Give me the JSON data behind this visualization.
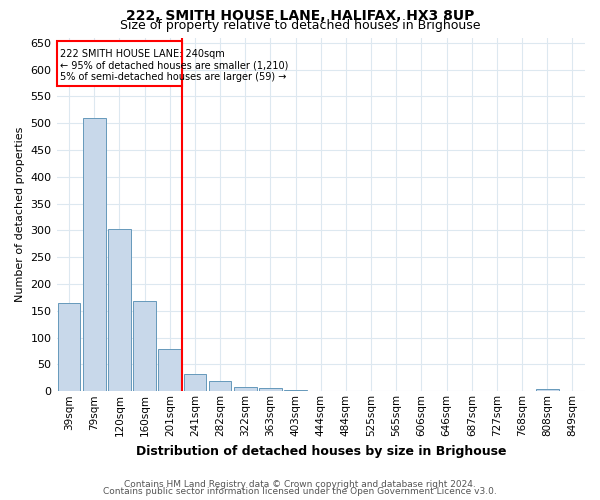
{
  "title1": "222, SMITH HOUSE LANE, HALIFAX, HX3 8UP",
  "title2": "Size of property relative to detached houses in Brighouse",
  "xlabel": "Distribution of detached houses by size in Brighouse",
  "ylabel": "Number of detached properties",
  "categories": [
    "39sqm",
    "79sqm",
    "120sqm",
    "160sqm",
    "201sqm",
    "241sqm",
    "282sqm",
    "322sqm",
    "363sqm",
    "403sqm",
    "444sqm",
    "484sqm",
    "525sqm",
    "565sqm",
    "606sqm",
    "646sqm",
    "687sqm",
    "727sqm",
    "768sqm",
    "808sqm",
    "849sqm"
  ],
  "values": [
    165,
    510,
    302,
    168,
    78,
    32,
    20,
    8,
    7,
    3,
    1,
    0,
    0,
    0,
    0,
    0,
    0,
    0,
    0,
    5,
    0
  ],
  "bar_color": "#c8d8ea",
  "bar_edge_color": "#6699bb",
  "red_line_index": 5,
  "red_line_label": "222 SMITH HOUSE LANE: 240sqm",
  "annotation_line2": "← 95% of detached houses are smaller (1,210)",
  "annotation_line3": "5% of semi-detached houses are larger (59) →",
  "ylim": [
    0,
    660
  ],
  "yticks": [
    0,
    50,
    100,
    150,
    200,
    250,
    300,
    350,
    400,
    450,
    500,
    550,
    600,
    650
  ],
  "footer1": "Contains HM Land Registry data © Crown copyright and database right 2024.",
  "footer2": "Contains public sector information licensed under the Open Government Licence v3.0.",
  "background_color": "#ffffff",
  "grid_color": "#dde8f0"
}
